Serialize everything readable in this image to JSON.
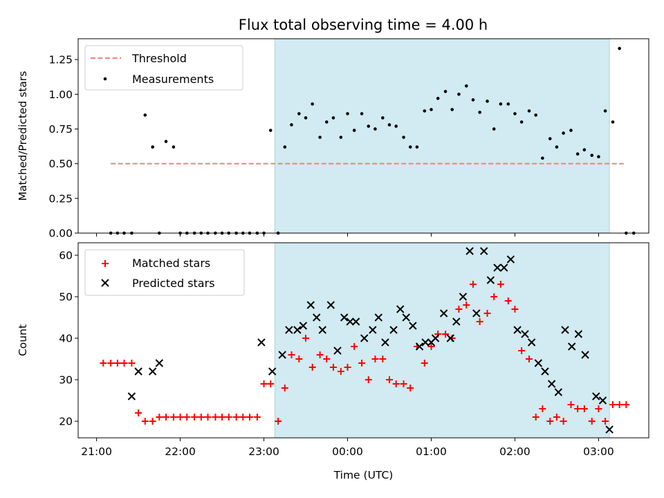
{
  "title": "Flux total observing time = 4.00 h",
  "colors": {
    "threshold": "#f08080",
    "shade": "#add8e6",
    "matched": "#ff0000",
    "predicted": "#000000",
    "measure": "#000000"
  },
  "chart_data": [
    {
      "type": "scatter",
      "ylabel": "Matched/Predicted stars",
      "ylim": [
        0,
        1.4
      ],
      "yticks": [
        "0.00",
        "0.25",
        "0.50",
        "0.75",
        "1.00",
        "1.25"
      ],
      "xlim_hours": [
        20.78,
        27.6
      ],
      "shaded_span_hours": [
        23.13,
        27.13
      ],
      "legend": {
        "placement": "upper-left",
        "entries": [
          "Threshold",
          "Measurements"
        ]
      },
      "threshold": {
        "name": "Threshold",
        "y": 0.5,
        "x_range_hours": [
          21.17,
          27.3
        ]
      },
      "measurements": {
        "name": "Measurements",
        "points": [
          [
            21.17,
            0
          ],
          [
            21.25,
            0
          ],
          [
            21.33,
            0
          ],
          [
            21.42,
            0
          ],
          [
            21.58,
            0.85
          ],
          [
            21.67,
            0.62
          ],
          [
            21.75,
            0
          ],
          [
            21.83,
            0.66
          ],
          [
            21.92,
            0.62
          ],
          [
            22.0,
            0
          ],
          [
            22.08,
            0
          ],
          [
            22.17,
            0
          ],
          [
            22.25,
            0
          ],
          [
            22.33,
            0
          ],
          [
            22.42,
            0
          ],
          [
            22.5,
            0
          ],
          [
            22.58,
            0
          ],
          [
            22.67,
            0
          ],
          [
            22.75,
            0
          ],
          [
            22.83,
            0
          ],
          [
            22.92,
            0
          ],
          [
            23.0,
            0
          ],
          [
            23.08,
            0.74
          ],
          [
            23.17,
            0
          ],
          [
            23.25,
            0.62
          ],
          [
            23.33,
            0.78
          ],
          [
            23.42,
            0.86
          ],
          [
            23.5,
            0.83
          ],
          [
            23.58,
            0.93
          ],
          [
            23.67,
            0.69
          ],
          [
            23.75,
            0.8
          ],
          [
            23.83,
            0.83
          ],
          [
            23.92,
            0.69
          ],
          [
            24.0,
            0.86
          ],
          [
            24.08,
            0.74
          ],
          [
            24.17,
            0.86
          ],
          [
            24.25,
            0.77
          ],
          [
            24.33,
            0.75
          ],
          [
            24.42,
            0.83
          ],
          [
            24.5,
            0.78
          ],
          [
            24.58,
            0.77
          ],
          [
            24.67,
            0.69
          ],
          [
            24.75,
            0.62
          ],
          [
            24.83,
            0.62
          ],
          [
            24.92,
            0.88
          ],
          [
            25.0,
            0.89
          ],
          [
            25.08,
            0.97
          ],
          [
            25.17,
            1.02
          ],
          [
            25.25,
            0.89
          ],
          [
            25.33,
            1.0
          ],
          [
            25.42,
            1.06
          ],
          [
            25.5,
            0.96
          ],
          [
            25.58,
            0.87
          ],
          [
            25.67,
            0.95
          ],
          [
            25.75,
            0.75
          ],
          [
            25.83,
            0.93
          ],
          [
            25.92,
            0.93
          ],
          [
            26.0,
            0.86
          ],
          [
            26.08,
            0.8
          ],
          [
            26.17,
            0.88
          ],
          [
            26.25,
            0.85
          ],
          [
            26.33,
            0.54
          ],
          [
            26.42,
            0.68
          ],
          [
            26.5,
            0.62
          ],
          [
            26.58,
            0.72
          ],
          [
            26.67,
            0.74
          ],
          [
            26.75,
            0.57
          ],
          [
            26.83,
            0.6
          ],
          [
            26.92,
            0.56
          ],
          [
            27.0,
            0.55
          ],
          [
            27.08,
            0.88
          ],
          [
            27.17,
            0.8
          ],
          [
            27.25,
            1.33
          ],
          [
            27.33,
            0
          ],
          [
            27.42,
            0
          ]
        ]
      }
    },
    {
      "type": "scatter",
      "ylabel": "Count",
      "xlabel": "Time (UTC)",
      "ylim": [
        16,
        63
      ],
      "yticks": [
        "20",
        "30",
        "40",
        "50",
        "60"
      ],
      "xlim_hours": [
        20.78,
        27.6
      ],
      "xticks": [
        {
          "hour": 21,
          "label": "21:00"
        },
        {
          "hour": 22,
          "label": "22:00"
        },
        {
          "hour": 23,
          "label": "23:00"
        },
        {
          "hour": 24,
          "label": "00:00"
        },
        {
          "hour": 25,
          "label": "01:00"
        },
        {
          "hour": 26,
          "label": "02:00"
        },
        {
          "hour": 27,
          "label": "03:00"
        }
      ],
      "shaded_span_hours": [
        23.13,
        27.13
      ],
      "legend": {
        "placement": "upper-left",
        "entries": [
          "Matched stars",
          "Predicted stars"
        ]
      },
      "series": [
        {
          "name": "Matched stars",
          "points": [
            [
              21.08,
              34
            ],
            [
              21.17,
              34
            ],
            [
              21.25,
              34
            ],
            [
              21.33,
              34
            ],
            [
              21.42,
              34
            ],
            [
              21.5,
              22
            ],
            [
              21.58,
              20
            ],
            [
              21.67,
              20
            ],
            [
              21.75,
              21
            ],
            [
              21.83,
              21
            ],
            [
              21.92,
              21
            ],
            [
              22.0,
              21
            ],
            [
              22.08,
              21
            ],
            [
              22.17,
              21
            ],
            [
              22.25,
              21
            ],
            [
              22.33,
              21
            ],
            [
              22.42,
              21
            ],
            [
              22.5,
              21
            ],
            [
              22.58,
              21
            ],
            [
              22.67,
              21
            ],
            [
              22.75,
              21
            ],
            [
              22.83,
              21
            ],
            [
              22.92,
              21
            ],
            [
              23.0,
              29
            ],
            [
              23.08,
              29
            ],
            [
              23.17,
              20
            ],
            [
              23.25,
              28
            ],
            [
              23.33,
              36
            ],
            [
              23.42,
              35
            ],
            [
              23.5,
              40
            ],
            [
              23.58,
              33
            ],
            [
              23.67,
              36
            ],
            [
              23.75,
              35
            ],
            [
              23.83,
              33
            ],
            [
              23.92,
              32
            ],
            [
              24.0,
              33
            ],
            [
              24.08,
              38
            ],
            [
              24.17,
              34
            ],
            [
              24.25,
              30
            ],
            [
              24.33,
              35
            ],
            [
              24.42,
              35
            ],
            [
              24.5,
              30
            ],
            [
              24.58,
              29
            ],
            [
              24.67,
              29
            ],
            [
              24.75,
              28
            ],
            [
              24.83,
              38
            ],
            [
              24.92,
              34
            ],
            [
              25.0,
              38
            ],
            [
              25.08,
              41
            ],
            [
              25.17,
              41
            ],
            [
              25.25,
              40
            ],
            [
              25.33,
              47
            ],
            [
              25.42,
              48
            ],
            [
              25.5,
              53
            ],
            [
              25.58,
              44
            ],
            [
              25.67,
              46
            ],
            [
              25.75,
              50
            ],
            [
              25.83,
              53
            ],
            [
              25.92,
              49
            ],
            [
              26.0,
              47
            ],
            [
              26.08,
              37
            ],
            [
              26.17,
              35
            ],
            [
              26.25,
              21
            ],
            [
              26.33,
              23
            ],
            [
              26.42,
              20
            ],
            [
              26.5,
              21
            ],
            [
              26.58,
              20
            ],
            [
              26.67,
              24
            ],
            [
              26.75,
              23
            ],
            [
              26.83,
              23
            ],
            [
              26.92,
              20
            ],
            [
              27.0,
              23
            ],
            [
              27.08,
              20
            ],
            [
              27.17,
              24
            ],
            [
              27.25,
              24
            ],
            [
              27.33,
              24
            ]
          ]
        },
        {
          "name": "Predicted stars",
          "points": [
            [
              21.42,
              26
            ],
            [
              21.5,
              32
            ],
            [
              21.67,
              32
            ],
            [
              21.75,
              34
            ],
            [
              22.97,
              39
            ],
            [
              23.1,
              32
            ],
            [
              23.22,
              36
            ],
            [
              23.3,
              42
            ],
            [
              23.4,
              42
            ],
            [
              23.47,
              43
            ],
            [
              23.56,
              48
            ],
            [
              23.63,
              45
            ],
            [
              23.7,
              42
            ],
            [
              23.8,
              48
            ],
            [
              23.88,
              37
            ],
            [
              23.96,
              45
            ],
            [
              24.03,
              44
            ],
            [
              24.1,
              44
            ],
            [
              24.2,
              40
            ],
            [
              24.3,
              42
            ],
            [
              24.37,
              45
            ],
            [
              24.45,
              39
            ],
            [
              24.55,
              42
            ],
            [
              24.63,
              47
            ],
            [
              24.7,
              45
            ],
            [
              24.78,
              43
            ],
            [
              24.86,
              38
            ],
            [
              24.93,
              39
            ],
            [
              25.0,
              39
            ],
            [
              25.05,
              40
            ],
            [
              25.15,
              46
            ],
            [
              25.23,
              40
            ],
            [
              25.3,
              44
            ],
            [
              25.38,
              50
            ],
            [
              25.46,
              61
            ],
            [
              25.54,
              46
            ],
            [
              25.63,
              61
            ],
            [
              25.71,
              54
            ],
            [
              25.79,
              57
            ],
            [
              25.87,
              57
            ],
            [
              25.95,
              59
            ],
            [
              26.03,
              42
            ],
            [
              26.12,
              41
            ],
            [
              26.2,
              39
            ],
            [
              26.28,
              34
            ],
            [
              26.36,
              32
            ],
            [
              26.44,
              29
            ],
            [
              26.52,
              27
            ],
            [
              26.6,
              42
            ],
            [
              26.68,
              38
            ],
            [
              26.76,
              41
            ],
            [
              26.84,
              36
            ],
            [
              26.97,
              26
            ],
            [
              27.05,
              25
            ],
            [
              27.13,
              18
            ]
          ]
        }
      ]
    }
  ]
}
